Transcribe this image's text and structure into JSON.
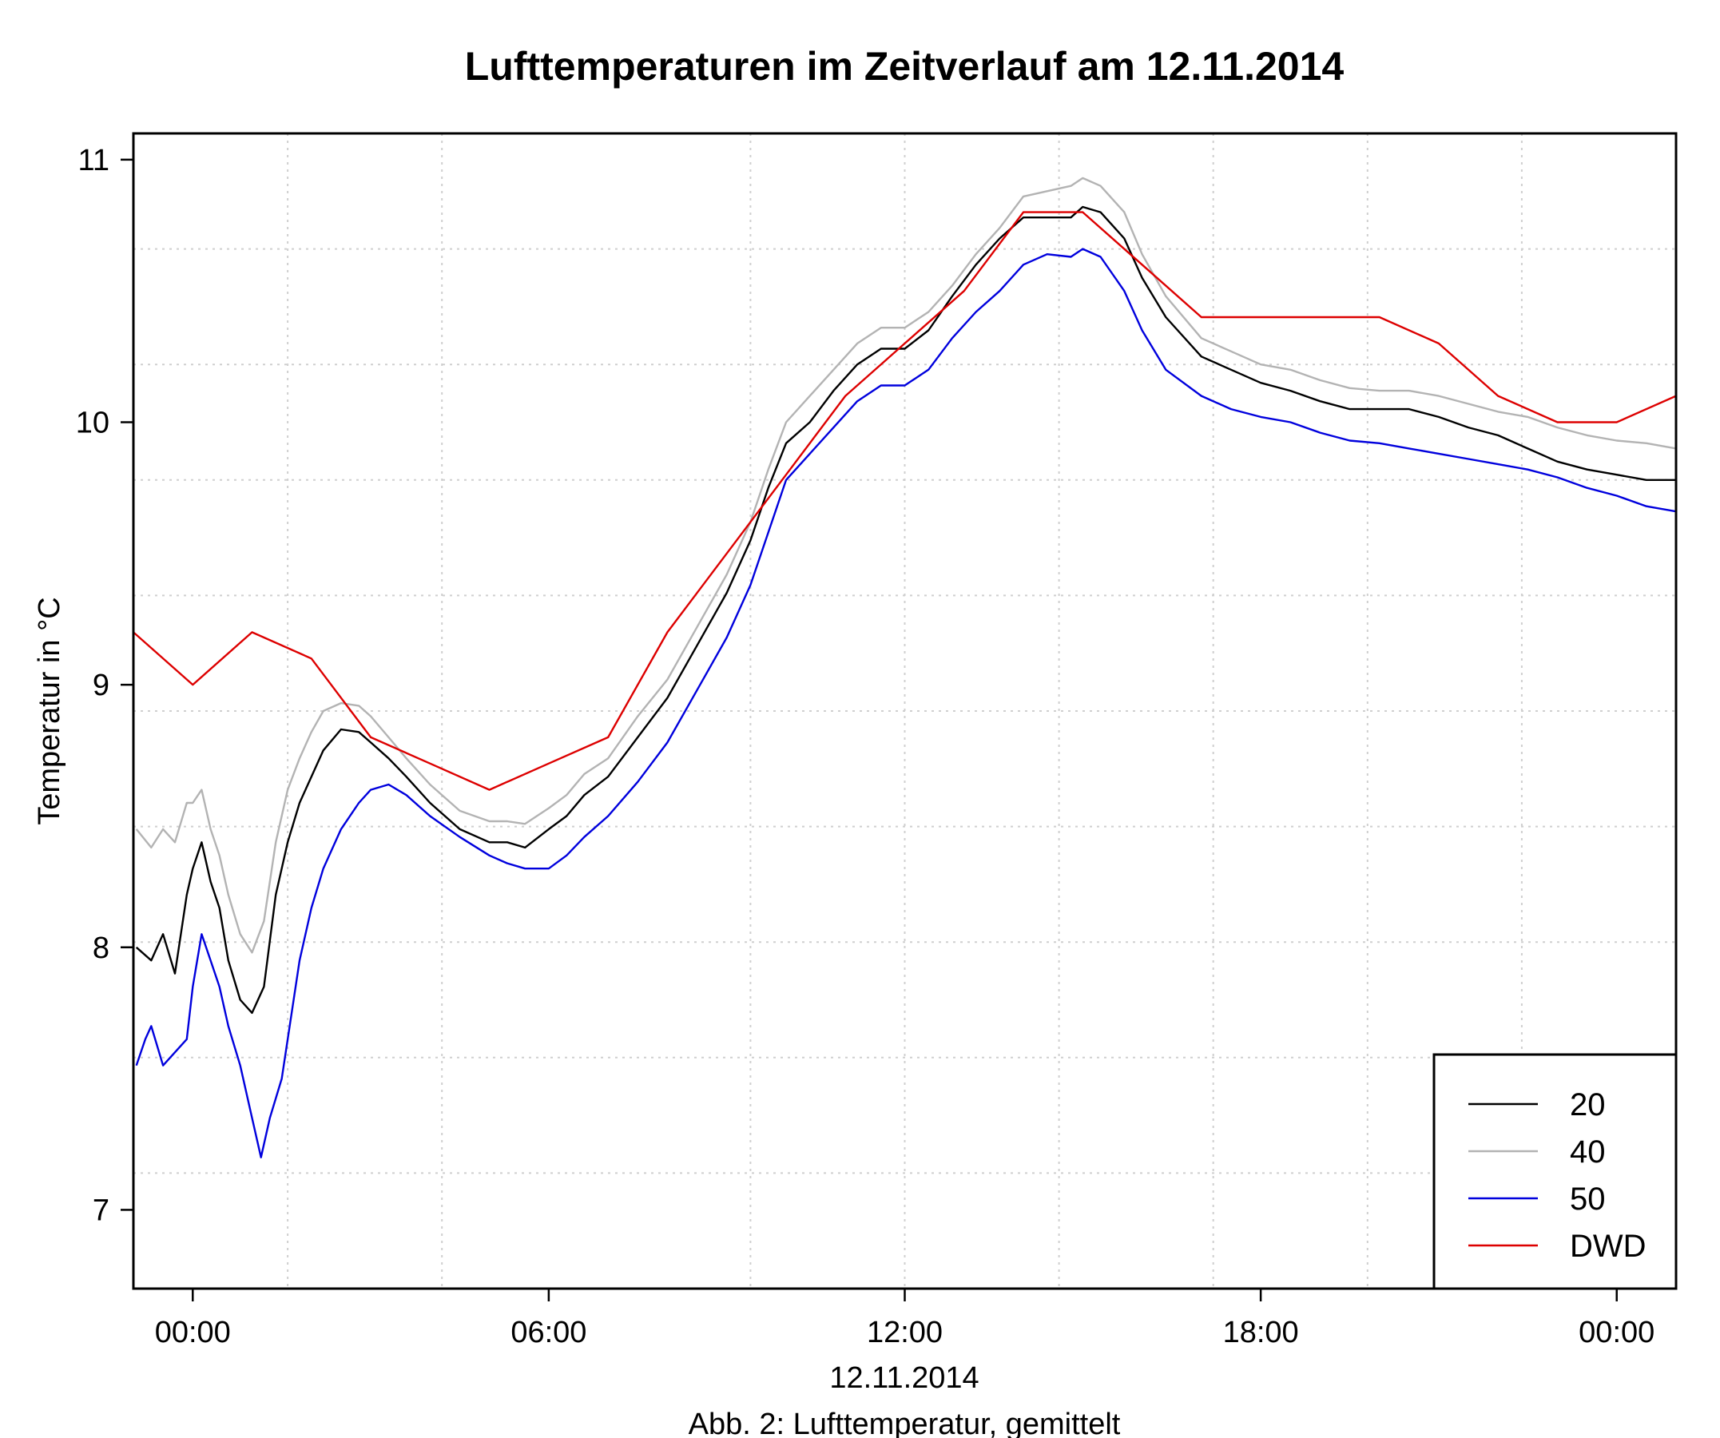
{
  "chart_data": {
    "type": "line",
    "title": "Lufttemperaturen im Zeitverlauf am 12.11.2014",
    "ylabel": "Temperatur in °C",
    "xlabel": "12.11.2014",
    "caption": "Abb. 2: Lufttemperatur, gemittelt",
    "x_unit": "hours relative to 00:00 on 12.11.2014",
    "xlim": [
      -1,
      25
    ],
    "ylim": [
      6.7,
      11.1
    ],
    "x_ticks": [
      {
        "x": 0,
        "label": "00:00"
      },
      {
        "x": 6,
        "label": "06:00"
      },
      {
        "x": 12,
        "label": "12:00"
      },
      {
        "x": 18,
        "label": "18:00"
      },
      {
        "x": 24,
        "label": "00:00"
      }
    ],
    "y_ticks": [
      {
        "y": 7,
        "label": "7"
      },
      {
        "y": 8,
        "label": "8"
      },
      {
        "y": 9,
        "label": "9"
      },
      {
        "y": 10,
        "label": "10"
      },
      {
        "y": 11,
        "label": "11"
      }
    ],
    "grid_x": [
      1.6,
      4.2,
      9.4,
      12.0,
      14.6,
      17.2,
      19.8,
      22.4
    ],
    "grid_y": [
      7.14,
      7.58,
      8.02,
      8.46,
      8.9,
      9.34,
      9.78,
      10.22,
      10.66
    ],
    "legend": {
      "placement": "bottom-right"
    },
    "series": [
      {
        "name": "20",
        "color": "#000000",
        "x": [
          -0.95,
          -0.7,
          -0.5,
          -0.3,
          -0.1,
          0.0,
          0.15,
          0.3,
          0.45,
          0.6,
          0.8,
          1.0,
          1.2,
          1.4,
          1.6,
          1.8,
          2.0,
          2.2,
          2.5,
          2.8,
          3.0,
          3.3,
          3.6,
          4.0,
          4.5,
          5.0,
          5.3,
          5.6,
          6.0,
          6.3,
          6.6,
          7.0,
          7.5,
          8.0,
          8.5,
          9.0,
          9.4,
          9.7,
          10.0,
          10.4,
          10.8,
          11.2,
          11.6,
          12.0,
          12.4,
          12.8,
          13.2,
          13.6,
          14.0,
          14.4,
          14.8,
          15.0,
          15.3,
          15.7,
          16.0,
          16.4,
          17.0,
          17.5,
          18.0,
          18.5,
          19.0,
          19.5,
          20.0,
          20.5,
          21.0,
          21.5,
          22.0,
          22.5,
          23.0,
          23.5,
          24.0,
          24.5,
          25.0
        ],
        "y": [
          8.0,
          7.95,
          8.05,
          7.9,
          8.2,
          8.3,
          8.4,
          8.25,
          8.15,
          7.95,
          7.8,
          7.75,
          7.85,
          8.2,
          8.4,
          8.55,
          8.65,
          8.75,
          8.83,
          8.82,
          8.78,
          8.72,
          8.65,
          8.55,
          8.45,
          8.4,
          8.4,
          8.38,
          8.45,
          8.5,
          8.58,
          8.65,
          8.8,
          8.95,
          9.15,
          9.35,
          9.55,
          9.75,
          9.92,
          10.0,
          10.12,
          10.22,
          10.28,
          10.28,
          10.35,
          10.48,
          10.6,
          10.7,
          10.78,
          10.78,
          10.78,
          10.82,
          10.8,
          10.7,
          10.55,
          10.4,
          10.25,
          10.2,
          10.15,
          10.12,
          10.08,
          10.05,
          10.05,
          10.05,
          10.02,
          9.98,
          9.95,
          9.9,
          9.85,
          9.82,
          9.8,
          9.78,
          9.78
        ]
      },
      {
        "name": "40",
        "color": "#b3b3b3",
        "x": [
          -0.95,
          -0.7,
          -0.5,
          -0.3,
          -0.1,
          0.0,
          0.15,
          0.3,
          0.45,
          0.6,
          0.8,
          1.0,
          1.2,
          1.4,
          1.6,
          1.8,
          2.0,
          2.2,
          2.5,
          2.8,
          3.0,
          3.3,
          3.6,
          4.0,
          4.5,
          5.0,
          5.3,
          5.6,
          6.0,
          6.3,
          6.6,
          7.0,
          7.5,
          8.0,
          8.5,
          9.0,
          9.4,
          9.7,
          10.0,
          10.4,
          10.8,
          11.2,
          11.6,
          12.0,
          12.4,
          12.8,
          13.2,
          13.6,
          14.0,
          14.4,
          14.8,
          15.0,
          15.3,
          15.7,
          16.0,
          16.4,
          17.0,
          17.5,
          18.0,
          18.5,
          19.0,
          19.5,
          20.0,
          20.5,
          21.0,
          21.5,
          22.0,
          22.5,
          23.0,
          23.5,
          24.0,
          24.5,
          25.0
        ],
        "y": [
          8.45,
          8.38,
          8.45,
          8.4,
          8.55,
          8.55,
          8.6,
          8.45,
          8.35,
          8.2,
          8.05,
          7.98,
          8.1,
          8.4,
          8.6,
          8.72,
          8.82,
          8.9,
          8.93,
          8.92,
          8.88,
          8.8,
          8.72,
          8.62,
          8.52,
          8.48,
          8.48,
          8.47,
          8.53,
          8.58,
          8.66,
          8.72,
          8.88,
          9.02,
          9.22,
          9.42,
          9.62,
          9.82,
          10.0,
          10.1,
          10.2,
          10.3,
          10.36,
          10.36,
          10.42,
          10.52,
          10.64,
          10.74,
          10.86,
          10.88,
          10.9,
          10.93,
          10.9,
          10.8,
          10.64,
          10.48,
          10.32,
          10.27,
          10.22,
          10.2,
          10.16,
          10.13,
          10.12,
          10.12,
          10.1,
          10.07,
          10.04,
          10.02,
          9.98,
          9.95,
          9.93,
          9.92,
          9.9
        ]
      },
      {
        "name": "50",
        "color": "#0000dd",
        "x": [
          -0.95,
          -0.8,
          -0.7,
          -0.5,
          -0.3,
          -0.1,
          0.0,
          0.15,
          0.3,
          0.45,
          0.6,
          0.8,
          1.0,
          1.15,
          1.3,
          1.5,
          1.8,
          2.0,
          2.2,
          2.5,
          2.8,
          3.0,
          3.3,
          3.6,
          4.0,
          4.5,
          5.0,
          5.3,
          5.6,
          6.0,
          6.3,
          6.6,
          7.0,
          7.5,
          8.0,
          8.5,
          9.0,
          9.4,
          9.7,
          10.0,
          10.4,
          10.8,
          11.2,
          11.6,
          12.0,
          12.4,
          12.8,
          13.2,
          13.6,
          14.0,
          14.4,
          14.8,
          15.0,
          15.3,
          15.7,
          16.0,
          16.4,
          17.0,
          17.5,
          18.0,
          18.5,
          19.0,
          19.5,
          20.0,
          20.5,
          21.0,
          21.5,
          22.0,
          22.5,
          23.0,
          23.5,
          24.0,
          24.5,
          25.0
        ],
        "y": [
          7.55,
          7.65,
          7.7,
          7.55,
          7.6,
          7.65,
          7.85,
          8.05,
          7.95,
          7.85,
          7.7,
          7.55,
          7.35,
          7.2,
          7.35,
          7.5,
          7.95,
          8.15,
          8.3,
          8.45,
          8.55,
          8.6,
          8.62,
          8.58,
          8.5,
          8.42,
          8.35,
          8.32,
          8.3,
          8.3,
          8.35,
          8.42,
          8.5,
          8.63,
          8.78,
          8.98,
          9.18,
          9.38,
          9.58,
          9.78,
          9.88,
          9.98,
          10.08,
          10.14,
          10.14,
          10.2,
          10.32,
          10.42,
          10.5,
          10.6,
          10.64,
          10.63,
          10.66,
          10.63,
          10.5,
          10.35,
          10.2,
          10.1,
          10.05,
          10.02,
          10.0,
          9.96,
          9.93,
          9.92,
          9.9,
          9.88,
          9.86,
          9.84,
          9.82,
          9.79,
          9.75,
          9.72,
          9.68,
          9.66
        ]
      },
      {
        "name": "DWD",
        "color": "#dd0000",
        "x": [
          -1,
          0,
          1,
          2,
          3,
          4,
          5,
          6,
          7,
          8,
          9,
          10,
          11,
          12,
          13,
          14,
          15,
          16,
          17,
          18,
          19,
          20,
          21,
          22,
          23,
          24,
          25
        ],
        "y": [
          9.2,
          9.0,
          9.2,
          9.1,
          8.8,
          8.7,
          8.6,
          8.7,
          8.8,
          9.2,
          9.5,
          9.8,
          10.1,
          10.3,
          10.5,
          10.8,
          10.8,
          10.6,
          10.4,
          10.4,
          10.4,
          10.4,
          10.3,
          10.1,
          10.0,
          10.0,
          10.1
        ]
      }
    ]
  }
}
